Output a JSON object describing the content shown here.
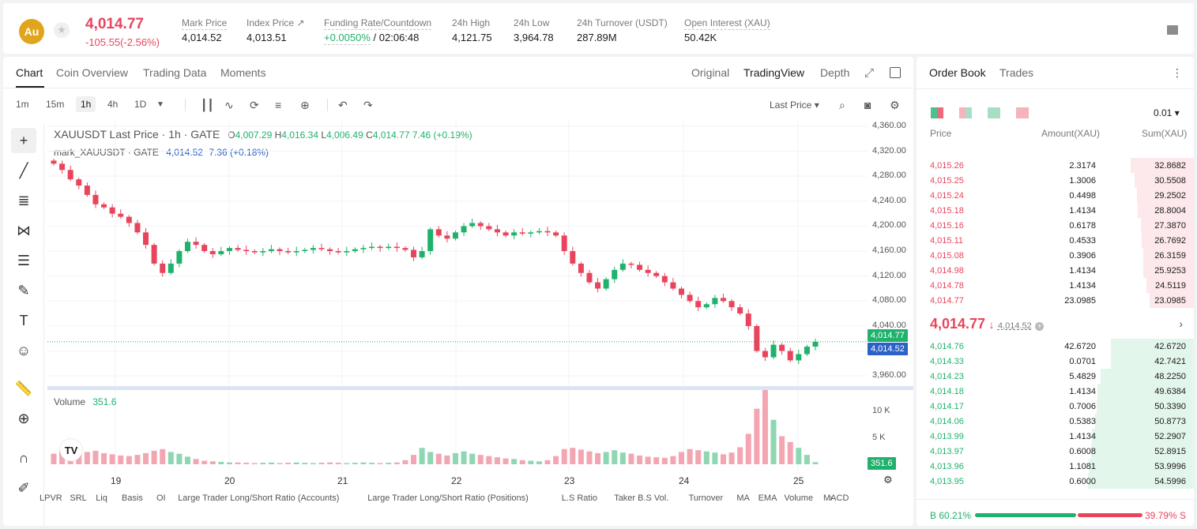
{
  "header": {
    "logo_text": "Au",
    "last_price": "4,014.77",
    "change": "-105.55(-2.56%)",
    "stats": [
      {
        "label": "Mark Price",
        "value": "4,014.52"
      },
      {
        "label": "Index Price ↗",
        "value": "4,013.51"
      },
      {
        "label": "Funding Rate/Countdown",
        "value_green": "+0.0050%",
        "value": "/ 02:06:48"
      },
      {
        "label": "24h High",
        "value": "4,121.75"
      },
      {
        "label": "24h Low",
        "value": "3,964.78"
      },
      {
        "label": "24h Turnover (USDT)",
        "value": "287.89M"
      },
      {
        "label": "Open Interest (XAU)",
        "value": "50.42K"
      }
    ]
  },
  "chart_tabs": [
    "Chart",
    "Coin Overview",
    "Trading Data",
    "Moments"
  ],
  "view_tabs": [
    "Original",
    "TradingView",
    "Depth"
  ],
  "timeframes": [
    "1m",
    "15m",
    "1h",
    "4h",
    "1D"
  ],
  "price_type": "Last Price",
  "legend": {
    "symbol": "XAUUSDT Last Price · 1h · GATE",
    "o_label": "O",
    "o": "4,007.29",
    "h_label": "H",
    "h": "4,016.34",
    "l_label": "L",
    "l": "4,006.49",
    "c_label": "C",
    "c": "4,014.77",
    "chg": "7.46 (+0.19%)",
    "mark_label": "mark_XAUUSDT · GATE",
    "mark_value": "4,014.52",
    "mark_chg": "7.36 (+0.18%)"
  },
  "volume_legend": {
    "label": "Volume",
    "value": "351.6"
  },
  "last_price_box": "4,014.77",
  "mark_price_box": "4,014.52",
  "volume_box": "351.6",
  "indicators": [
    "LPVR",
    "SRL",
    "Liq",
    "Basis",
    "OI",
    "Large Trader Long/Short Ratio (Accounts)",
    "Large Trader Long/Short Ratio (Positions)",
    "L.S Ratio",
    "Taker B.S Vol.",
    "Turnover",
    "MA",
    "EMA",
    "Volume",
    "MACD"
  ],
  "colors": {
    "up": "#20b26c",
    "down": "#e8455d",
    "mark": "#2c62c8",
    "accent": "#e0a51c"
  },
  "chart_data": {
    "type": "candlestick",
    "title": "XAUUSDT Last Price · 1h · GATE",
    "x_ticks": [
      "19",
      "20",
      "21",
      "22",
      "23",
      "24",
      "25"
    ],
    "y_ticks": [
      "4,360.00",
      "4,320.00",
      "4,280.00",
      "4,240.00",
      "4,200.00",
      "4,160.00",
      "4,120.00",
      "4,080.00",
      "4,040.00",
      "4,000.00",
      "3,960.00"
    ],
    "ylim": [
      3940,
      4370
    ],
    "volume_ticks": [
      "10 K",
      "5 K"
    ],
    "volume_max": 13500,
    "close_path": [
      4300,
      4290,
      4275,
      4265,
      4250,
      4235,
      4230,
      4220,
      4215,
      4205,
      4190,
      4170,
      4140,
      4125,
      4140,
      4160,
      4175,
      4170,
      4160,
      4155,
      4160,
      4165,
      4162,
      4160,
      4158,
      4160,
      4163,
      4160,
      4158,
      4160,
      4162,
      4165,
      4163,
      4160,
      4158,
      4160,
      4163,
      4165,
      4167,
      4165,
      4167,
      4165,
      4162,
      4150,
      4160,
      4195,
      4185,
      4180,
      4190,
      4200,
      4205,
      4200,
      4195,
      4190,
      4185,
      4190,
      4188,
      4190,
      4192,
      4190,
      4185,
      4160,
      4140,
      4125,
      4110,
      4100,
      4115,
      4130,
      4140,
      4138,
      4130,
      4125,
      4120,
      4110,
      4100,
      4090,
      4080,
      4070,
      4075,
      4085,
      4080,
      4070,
      4060,
      4040,
      4000,
      3990,
      4010,
      4000,
      3985,
      3995,
      4007,
      4014.77
    ],
    "volumes": [
      1800,
      2200,
      2000,
      2400,
      2100,
      2300,
      1900,
      1700,
      1500,
      1400,
      1600,
      1900,
      2300,
      2600,
      2100,
      1800,
      1300,
      900,
      600,
      500,
      400,
      300,
      300,
      250,
      200,
      250,
      300,
      200,
      250,
      300,
      250,
      200,
      250,
      300,
      250,
      200,
      250,
      300,
      250,
      200,
      250,
      300,
      700,
      1600,
      2800,
      2100,
      1800,
      1500,
      1900,
      2200,
      1800,
      1600,
      1400,
      1200,
      1000,
      900,
      700,
      600,
      500,
      700,
      1400,
      2600,
      2800,
      2500,
      2200,
      1900,
      2100,
      2400,
      2000,
      1800,
      1500,
      1300,
      1200,
      1100,
      1400,
      2100,
      2600,
      2400,
      2200,
      2000,
      1700,
      2000,
      2900,
      5200,
      9500,
      13000,
      7600,
      4800,
      3800,
      2800,
      1600,
      351.6
    ]
  },
  "orderbook": {
    "tabs": [
      "Order Book",
      "Trades"
    ],
    "precision": "0.01",
    "headers": [
      "Price",
      "Amount(XAU)",
      "Sum(XAU)"
    ],
    "asks": [
      {
        "price": "4,015.26",
        "amount": "2.3174",
        "sum": "32.8682",
        "depth": 0.6
      },
      {
        "price": "4,015.25",
        "amount": "1.3006",
        "sum": "30.5508",
        "depth": 0.56
      },
      {
        "price": "4,015.24",
        "amount": "0.4498",
        "sum": "29.2502",
        "depth": 0.54
      },
      {
        "price": "4,015.18",
        "amount": "1.4134",
        "sum": "28.8004",
        "depth": 0.53
      },
      {
        "price": "4,015.16",
        "amount": "0.6178",
        "sum": "27.3870",
        "depth": 0.5
      },
      {
        "price": "4,015.11",
        "amount": "0.4533",
        "sum": "26.7692",
        "depth": 0.49
      },
      {
        "price": "4,015.08",
        "amount": "0.3906",
        "sum": "26.3159",
        "depth": 0.48
      },
      {
        "price": "4,014.98",
        "amount": "1.4134",
        "sum": "25.9253",
        "depth": 0.475
      },
      {
        "price": "4,014.78",
        "amount": "1.4134",
        "sum": "24.5119",
        "depth": 0.45
      },
      {
        "price": "4,014.77",
        "amount": "23.0985",
        "sum": "23.0985",
        "depth": 0.42
      }
    ],
    "mid_price": "4,014.77",
    "mid_arrow": "↓",
    "mid_mark": "4,014.52",
    "bids": [
      {
        "price": "4,014.76",
        "amount": "42.6720",
        "sum": "42.6720",
        "depth": 0.78
      },
      {
        "price": "4,014.33",
        "amount": "0.0701",
        "sum": "42.7421",
        "depth": 0.78
      },
      {
        "price": "4,014.23",
        "amount": "5.4829",
        "sum": "48.2250",
        "depth": 0.88
      },
      {
        "price": "4,014.18",
        "amount": "1.4134",
        "sum": "49.6384",
        "depth": 0.91
      },
      {
        "price": "4,014.17",
        "amount": "0.7006",
        "sum": "50.3390",
        "depth": 0.92
      },
      {
        "price": "4,014.06",
        "amount": "0.5383",
        "sum": "50.8773",
        "depth": 0.93
      },
      {
        "price": "4,013.99",
        "amount": "1.4134",
        "sum": "52.2907",
        "depth": 0.96
      },
      {
        "price": "4,013.97",
        "amount": "0.6008",
        "sum": "52.8915",
        "depth": 0.97
      },
      {
        "price": "4,013.96",
        "amount": "1.1081",
        "sum": "53.9996",
        "depth": 0.99
      },
      {
        "price": "4,013.95",
        "amount": "0.6000",
        "sum": "54.5996",
        "depth": 1.0
      }
    ],
    "buy_ratio": "B 60.21%",
    "sell_ratio": "39.79% S",
    "buy_fraction": 0.6021
  }
}
